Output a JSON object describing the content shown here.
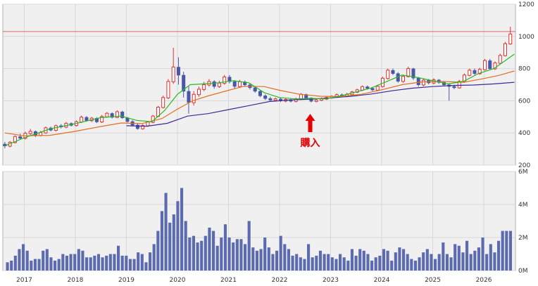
{
  "chart_data": [
    {
      "type": "candlestick",
      "panel": "price",
      "y_ticks": [
        "1200",
        "1000",
        "800",
        "600",
        "400",
        "200"
      ],
      "ylim": [
        200,
        1200
      ],
      "grid": true,
      "reference_line": {
        "value": 1030,
        "color": "#e06666"
      },
      "annotation": {
        "text": "購入",
        "date": "2022.6",
        "color": "#e60000"
      },
      "colors": {
        "up": "#e03030",
        "down": "#4a56a6",
        "ma_short": "#22bb22",
        "ma_mid": "#e07020",
        "ma_long": "#3a2a9a"
      },
      "candles": [
        [
          2016.62,
          330,
          320,
          345,
          305
        ],
        [
          2016.72,
          318,
          342,
          350,
          310
        ],
        [
          2016.82,
          340,
          378,
          385,
          335
        ],
        [
          2016.92,
          376,
          368,
          395,
          360
        ],
        [
          2017.02,
          366,
          398,
          408,
          360
        ],
        [
          2017.12,
          396,
          410,
          425,
          388
        ],
        [
          2017.22,
          408,
          385,
          415,
          375
        ],
        [
          2017.32,
          384,
          402,
          412,
          378
        ],
        [
          2017.42,
          400,
          432,
          440,
          395
        ],
        [
          2017.52,
          430,
          418,
          440,
          410
        ],
        [
          2017.62,
          416,
          445,
          452,
          410
        ],
        [
          2017.72,
          444,
          438,
          455,
          428
        ],
        [
          2017.82,
          436,
          460,
          468,
          430
        ],
        [
          2017.92,
          458,
          448,
          466,
          440
        ],
        [
          2018.02,
          446,
          470,
          478,
          440
        ],
        [
          2018.12,
          468,
          498,
          508,
          462
        ],
        [
          2018.22,
          496,
          478,
          505,
          470
        ],
        [
          2018.32,
          476,
          492,
          500,
          468
        ],
        [
          2018.42,
          490,
          470,
          498,
          462
        ],
        [
          2018.52,
          468,
          502,
          512,
          462
        ],
        [
          2018.62,
          500,
          522,
          530,
          495
        ],
        [
          2018.72,
          520,
          498,
          528,
          490
        ],
        [
          2018.82,
          496,
          532,
          540,
          492
        ],
        [
          2018.92,
          530,
          495,
          538,
          488
        ],
        [
          2019.02,
          493,
          472,
          500,
          465
        ],
        [
          2019.12,
          470,
          450,
          480,
          440
        ],
        [
          2019.22,
          448,
          428,
          458,
          420
        ],
        [
          2019.32,
          426,
          446,
          455,
          420
        ],
        [
          2019.42,
          444,
          468,
          475,
          438
        ],
        [
          2019.52,
          466,
          505,
          512,
          460
        ],
        [
          2019.62,
          503,
          560,
          568,
          498
        ],
        [
          2019.72,
          558,
          620,
          632,
          552
        ],
        [
          2019.82,
          618,
          720,
          735,
          610
        ],
        [
          2019.92,
          718,
          810,
          930,
          705
        ],
        [
          2020.02,
          808,
          760,
          870,
          700
        ],
        [
          2020.12,
          758,
          660,
          780,
          620
        ],
        [
          2020.22,
          658,
          590,
          690,
          520
        ],
        [
          2020.32,
          588,
          640,
          660,
          570
        ],
        [
          2020.42,
          638,
          672,
          688,
          625
        ],
        [
          2020.52,
          670,
          700,
          718,
          660
        ],
        [
          2020.62,
          698,
          720,
          735,
          688
        ],
        [
          2020.72,
          718,
          690,
          728,
          675
        ],
        [
          2020.82,
          688,
          710,
          725,
          680
        ],
        [
          2020.92,
          708,
          748,
          760,
          700
        ],
        [
          2021.02,
          746,
          720,
          760,
          708
        ],
        [
          2021.12,
          718,
          690,
          728,
          675
        ],
        [
          2021.22,
          688,
          718,
          730,
          680
        ],
        [
          2021.32,
          716,
          700,
          726,
          690
        ],
        [
          2021.42,
          698,
          682,
          708,
          670
        ],
        [
          2021.52,
          680,
          660,
          690,
          650
        ],
        [
          2021.62,
          658,
          632,
          668,
          622
        ],
        [
          2021.72,
          630,
          615,
          640,
          605
        ],
        [
          2021.82,
          613,
          605,
          625,
          598
        ],
        [
          2021.92,
          603,
          612,
          620,
          595
        ],
        [
          2022.02,
          610,
          600,
          618,
          592
        ],
        [
          2022.12,
          598,
          608,
          615,
          590
        ],
        [
          2022.22,
          606,
          598,
          612,
          590
        ],
        [
          2022.32,
          596,
          612,
          620,
          590
        ],
        [
          2022.42,
          610,
          640,
          648,
          605
        ],
        [
          2022.52,
          638,
          618,
          645,
          610
        ],
        [
          2022.62,
          616,
          598,
          622,
          590
        ],
        [
          2022.72,
          596,
          605,
          612,
          590
        ],
        [
          2022.82,
          603,
          612,
          620,
          598
        ],
        [
          2022.92,
          610,
          620,
          628,
          605
        ],
        [
          2023.02,
          618,
          628,
          635,
          612
        ],
        [
          2023.12,
          626,
          638,
          645,
          620
        ],
        [
          2023.22,
          636,
          630,
          645,
          622
        ],
        [
          2023.32,
          628,
          640,
          650,
          622
        ],
        [
          2023.42,
          638,
          655,
          662,
          632
        ],
        [
          2023.52,
          653,
          668,
          675,
          648
        ],
        [
          2023.62,
          666,
          688,
          695,
          660
        ],
        [
          2023.72,
          686,
          678,
          695,
          670
        ],
        [
          2023.82,
          676,
          668,
          685,
          660
        ],
        [
          2023.92,
          666,
          690,
          700,
          660
        ],
        [
          2024.02,
          688,
          740,
          750,
          682
        ],
        [
          2024.12,
          738,
          790,
          800,
          732
        ],
        [
          2024.22,
          788,
          770,
          800,
          760
        ],
        [
          2024.32,
          768,
          722,
          778,
          712
        ],
        [
          2024.42,
          720,
          752,
          762,
          712
        ],
        [
          2024.52,
          750,
          800,
          812,
          745
        ],
        [
          2024.62,
          798,
          742,
          805,
          730
        ],
        [
          2024.72,
          740,
          700,
          748,
          688
        ],
        [
          2024.82,
          698,
          728,
          738,
          690
        ],
        [
          2024.92,
          726,
          712,
          735,
          702
        ],
        [
          2025.02,
          710,
          730,
          740,
          702
        ],
        [
          2025.12,
          728,
          715,
          735,
          705
        ],
        [
          2025.22,
          713,
          700,
          722,
          690
        ],
        [
          2025.32,
          698,
          690,
          708,
          600
        ],
        [
          2025.42,
          688,
          682,
          700,
          672
        ],
        [
          2025.52,
          680,
          720,
          730,
          675
        ],
        [
          2025.62,
          718,
          760,
          770,
          712
        ],
        [
          2025.72,
          758,
          790,
          800,
          752
        ],
        [
          2025.82,
          788,
          770,
          800,
          760
        ],
        [
          2025.92,
          768,
          795,
          805,
          762
        ],
        [
          2026.02,
          793,
          850,
          860,
          788
        ],
        [
          2026.12,
          848,
          800,
          860,
          790
        ],
        [
          2026.22,
          798,
          835,
          845,
          792
        ],
        [
          2026.32,
          833,
          882,
          892,
          828
        ],
        [
          2026.42,
          880,
          955,
          965,
          875
        ],
        [
          2026.52,
          953,
          1015,
          1060,
          948
        ]
      ],
      "ma_short": [
        [
          2016.62,
          320
        ],
        [
          2017.0,
          370
        ],
        [
          2017.5,
          425
        ],
        [
          2018.0,
          458
        ],
        [
          2018.5,
          495
        ],
        [
          2018.9,
          505
        ],
        [
          2019.2,
          478
        ],
        [
          2019.5,
          470
        ],
        [
          2019.75,
          540
        ],
        [
          2020.0,
          640
        ],
        [
          2020.25,
          700
        ],
        [
          2020.5,
          705
        ],
        [
          2020.8,
          712
        ],
        [
          2021.1,
          725
        ],
        [
          2021.4,
          712
        ],
        [
          2021.7,
          650
        ],
        [
          2022.0,
          620
        ],
        [
          2022.3,
          612
        ],
        [
          2022.6,
          615
        ],
        [
          2022.9,
          612
        ],
        [
          2023.2,
          630
        ],
        [
          2023.5,
          655
        ],
        [
          2023.8,
          680
        ],
        [
          2024.1,
          720
        ],
        [
          2024.4,
          760
        ],
        [
          2024.7,
          745
        ],
        [
          2025.0,
          725
        ],
        [
          2025.3,
          705
        ],
        [
          2025.6,
          720
        ],
        [
          2025.9,
          770
        ],
        [
          2026.2,
          800
        ],
        [
          2026.6,
          890
        ]
      ],
      "ma_mid": [
        [
          2016.62,
          400
        ],
        [
          2017.0,
          382
        ],
        [
          2017.5,
          385
        ],
        [
          2018.0,
          410
        ],
        [
          2018.5,
          440
        ],
        [
          2018.9,
          462
        ],
        [
          2019.3,
          458
        ],
        [
          2019.7,
          490
        ],
        [
          2020.0,
          548
        ],
        [
          2020.3,
          600
        ],
        [
          2020.6,
          630
        ],
        [
          2021.0,
          665
        ],
        [
          2021.3,
          690
        ],
        [
          2021.7,
          688
        ],
        [
          2022.0,
          665
        ],
        [
          2022.4,
          640
        ],
        [
          2022.8,
          628
        ],
        [
          2023.2,
          626
        ],
        [
          2023.6,
          640
        ],
        [
          2024.0,
          668
        ],
        [
          2024.4,
          700
        ],
        [
          2024.8,
          718
        ],
        [
          2025.2,
          720
        ],
        [
          2025.6,
          715
        ],
        [
          2026.0,
          738
        ],
        [
          2026.3,
          758
        ],
        [
          2026.6,
          785
        ]
      ],
      "ma_long": [
        [
          2019.0,
          445
        ],
        [
          2019.4,
          442
        ],
        [
          2019.8,
          460
        ],
        [
          2020.2,
          505
        ],
        [
          2020.6,
          520
        ],
        [
          2021.0,
          545
        ],
        [
          2021.4,
          570
        ],
        [
          2021.8,
          595
        ],
        [
          2022.2,
          605
        ],
        [
          2022.6,
          610
        ],
        [
          2023.0,
          618
        ],
        [
          2023.4,
          628
        ],
        [
          2023.8,
          642
        ],
        [
          2024.2,
          662
        ],
        [
          2024.6,
          678
        ],
        [
          2025.0,
          688
        ],
        [
          2025.4,
          695
        ],
        [
          2025.8,
          698
        ],
        [
          2026.2,
          705
        ],
        [
          2026.6,
          715
        ]
      ]
    },
    {
      "type": "bar",
      "panel": "volume",
      "y_ticks": [
        "6M",
        "4M",
        "2M",
        "0M"
      ],
      "ylim": [
        0,
        6
      ],
      "x_ticks": [
        "2017",
        "2018",
        "2019",
        "2020",
        "2021",
        "2022",
        "2023",
        "2024",
        "2025",
        "2026"
      ],
      "grid": true,
      "color": "#5c6bb0",
      "values": [
        0.5,
        0.6,
        0.9,
        1.3,
        1.6,
        1.2,
        0.6,
        0.7,
        0.7,
        1.2,
        1.3,
        0.8,
        0.6,
        0.7,
        1.0,
        0.9,
        1.0,
        1.0,
        1.3,
        1.2,
        0.8,
        0.8,
        0.9,
        1.0,
        0.8,
        0.9,
        1.0,
        1.0,
        1.5,
        0.9,
        0.9,
        0.7,
        0.7,
        1.1,
        1.0,
        0.5,
        1.1,
        1.6,
        2.4,
        3.6,
        4.7,
        2.9,
        3.4,
        4.2,
        5.0,
        3.0,
        2.0,
        2.1,
        1.7,
        1.8,
        2.1,
        2.6,
        2.4,
        1.5,
        2.0,
        2.8,
        2.0,
        1.7,
        1.9,
        1.9,
        1.6,
        3.0,
        1.4,
        1.2,
        1.3,
        2.0,
        1.4,
        1.0,
        1.2,
        2.1,
        1.6,
        1.3,
        0.9,
        1.0,
        0.8,
        0.7,
        1.6,
        0.8,
        0.9,
        1.2,
        1.0,
        1.0,
        0.8,
        0.7,
        1.0,
        0.8,
        0.6,
        1.3,
        0.9,
        1.3,
        1.2,
        1.0,
        0.6,
        0.8,
        0.9,
        1.3,
        1.2,
        0.6,
        1.1,
        1.4,
        1.3,
        1.0,
        0.7,
        0.6,
        0.8,
        1.1,
        1.3,
        1.0,
        0.7,
        1.0,
        1.7,
        1.0,
        0.8,
        1.6,
        1.5,
        1.1,
        1.8,
        1.0,
        1.2,
        1.4,
        2.0,
        1.0,
        1.6,
        1.1,
        1.8,
        2.4,
        2.4,
        2.4
      ]
    }
  ]
}
